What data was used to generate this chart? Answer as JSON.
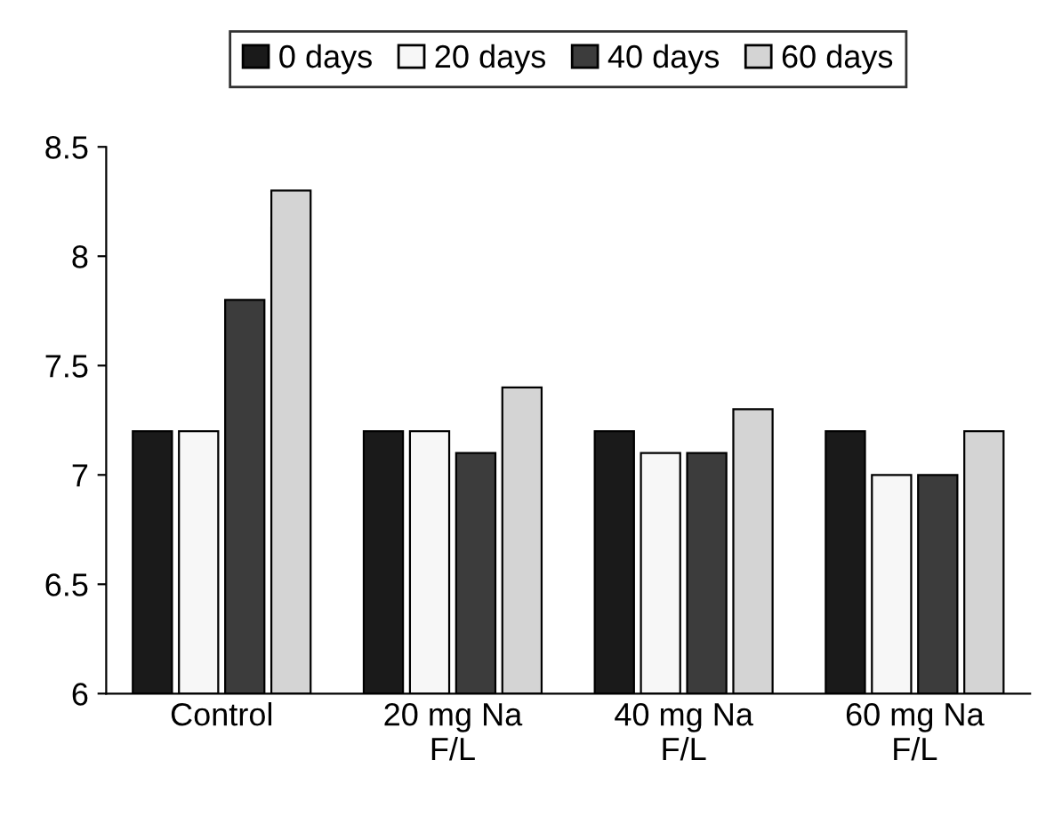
{
  "chart_data": {
    "type": "bar",
    "categories": [
      "Control",
      "20 mg Na F/L",
      "40 mg Na F/L",
      "60 mg Na F/L"
    ],
    "series": [
      {
        "name": "0 days",
        "color": "#1a1a1a",
        "values": [
          7.2,
          7.2,
          7.2,
          7.2
        ]
      },
      {
        "name": "20 days",
        "color": "#f7f7f7",
        "values": [
          7.2,
          7.2,
          7.1,
          7.0
        ]
      },
      {
        "name": "40 days",
        "color": "#3c3c3c",
        "values": [
          7.8,
          7.1,
          7.1,
          7.0
        ]
      },
      {
        "name": "60 days",
        "color": "#d4d4d4",
        "values": [
          8.3,
          7.4,
          7.3,
          7.2
        ]
      }
    ],
    "ylim": [
      6,
      8.5
    ],
    "yticks": [
      6,
      6.5,
      7,
      7.5,
      8,
      8.5
    ],
    "grid": false,
    "legend": "top"
  }
}
